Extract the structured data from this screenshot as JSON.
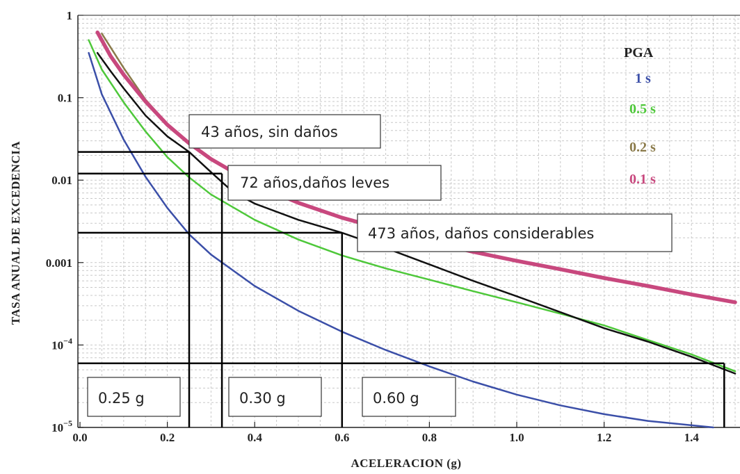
{
  "chart_data": {
    "type": "line",
    "xlabel": "ACELERACION (g)",
    "ylabel": "TASA ANUAL DE EXCEDENCIA",
    "xlim": [
      0.0,
      1.5
    ],
    "ylim": [
      1e-05,
      1
    ],
    "yscale": "log",
    "grid": true,
    "x_ticks": [
      {
        "value": 0.0,
        "label": "0.0"
      },
      {
        "value": 0.2,
        "label": "0.2"
      },
      {
        "value": 0.4,
        "label": "0.4"
      },
      {
        "value": 0.6,
        "label": "0.6"
      },
      {
        "value": 0.8,
        "label": "0.8"
      },
      {
        "value": 1.0,
        "label": "1.0"
      },
      {
        "value": 1.2,
        "label": "1.2"
      },
      {
        "value": 1.4,
        "label": "1.4"
      }
    ],
    "y_ticks": [
      {
        "value": 1,
        "label": "1"
      },
      {
        "value": 0.1,
        "label": "0.1"
      },
      {
        "value": 0.01,
        "label": "0.01"
      },
      {
        "value": 0.001,
        "label": "0.001"
      }
    ],
    "y_ticks_power": [
      {
        "value": 0.0001,
        "base": "10",
        "exp": "−4"
      },
      {
        "value": 1e-05,
        "base": "10",
        "exp": "−5"
      }
    ],
    "legend": {
      "title": "PGA",
      "position": "top-right",
      "entries": [
        {
          "label": "1 s",
          "color": "#3b4fa8"
        },
        {
          "label": "0.5 s",
          "color": "#4ec83a"
        },
        {
          "label": "0.2 s",
          "color": "#8a7a4a"
        },
        {
          "label": "0.1 s",
          "color": "#c8487e"
        }
      ]
    },
    "series": [
      {
        "color": "#3b4fa8",
        "width": 2.5,
        "x": [
          0.02,
          0.05,
          0.1,
          0.15,
          0.2,
          0.25,
          0.3,
          0.4,
          0.5,
          0.6,
          0.7,
          0.8,
          0.9,
          1.0,
          1.1,
          1.2,
          1.3,
          1.45
        ],
        "y": [
          0.35,
          0.11,
          0.031,
          0.011,
          0.0046,
          0.0022,
          0.00125,
          0.00052,
          0.00026,
          0.000145,
          8.7e-05,
          5.5e-05,
          3.6e-05,
          2.5e-05,
          1.85e-05,
          1.45e-05,
          1.2e-05,
          1e-05
        ]
      },
      {
        "color": "#4ec83a",
        "width": 2.5,
        "x": [
          0.02,
          0.05,
          0.1,
          0.15,
          0.2,
          0.25,
          0.3,
          0.4,
          0.5,
          0.6,
          0.7,
          0.8,
          0.9,
          1.0,
          1.1,
          1.2,
          1.3,
          1.4,
          1.5
        ],
        "y": [
          0.5,
          0.22,
          0.088,
          0.039,
          0.019,
          0.0108,
          0.0067,
          0.0033,
          0.0019,
          0.00122,
          0.00085,
          0.00062,
          0.00045,
          0.00033,
          0.00024,
          0.000173,
          0.000115,
          7.7e-05,
          4.8e-05
        ]
      },
      {
        "color": "#8a7a4a",
        "width": 2.5,
        "x": [
          0.05,
          0.1,
          0.15,
          0.2,
          0.25,
          0.3,
          0.4,
          0.5,
          0.6,
          0.7,
          0.8,
          0.9,
          1.0,
          1.1,
          1.2,
          1.3,
          1.4,
          1.5
        ],
        "y": [
          0.6,
          0.23,
          0.095,
          0.048,
          0.028,
          0.018,
          0.0088,
          0.0053,
          0.0035,
          0.0025,
          0.0018,
          0.00135,
          0.00105,
          0.00083,
          0.00066,
          0.00052,
          0.00041,
          0.00033
        ]
      },
      {
        "color": "#c8487e",
        "width": 5.5,
        "x": [
          0.04,
          0.07,
          0.1,
          0.15,
          0.2,
          0.25,
          0.3,
          0.4,
          0.5,
          0.6,
          0.7,
          0.8,
          0.9,
          1.0,
          1.1,
          1.2,
          1.3,
          1.4,
          1.5
        ],
        "y": [
          0.62,
          0.32,
          0.19,
          0.09,
          0.047,
          0.028,
          0.018,
          0.0089,
          0.0053,
          0.0035,
          0.0025,
          0.0018,
          0.00135,
          0.00105,
          0.00083,
          0.00065,
          0.00052,
          0.00041,
          0.00033
        ]
      },
      {
        "color": "#111111",
        "width": 2.5,
        "x": [
          0.04,
          0.07,
          0.1,
          0.15,
          0.2,
          0.25,
          0.3,
          0.35,
          0.4,
          0.5,
          0.6,
          0.7,
          0.8,
          0.9,
          1.0,
          1.1,
          1.2,
          1.3,
          1.4,
          1.5
        ],
        "y": [
          0.35,
          0.21,
          0.13,
          0.061,
          0.034,
          0.022,
          0.0125,
          0.0072,
          0.0052,
          0.0033,
          0.0023,
          0.0015,
          0.00095,
          0.0006,
          0.00039,
          0.00025,
          0.00016,
          0.00011,
          7.2e-05,
          4.5e-05
        ]
      }
    ],
    "reference_lines": [
      {
        "x": 0.25,
        "y": 0.022
      },
      {
        "x": 0.325,
        "y": 0.012
      },
      {
        "x": 0.6,
        "y": 0.0023
      },
      {
        "x": 1.475,
        "y": 6e-05
      }
    ],
    "annotations": {
      "return_periods": [
        {
          "text": "43 años, sin daños"
        },
        {
          "text": "72 años,daños leves"
        },
        {
          "text": "473 años, daños considerables"
        }
      ],
      "accelerations": [
        {
          "text": "0.25 g"
        },
        {
          "text": "0.30 g"
        },
        {
          "text": "0.60 g"
        }
      ]
    }
  }
}
